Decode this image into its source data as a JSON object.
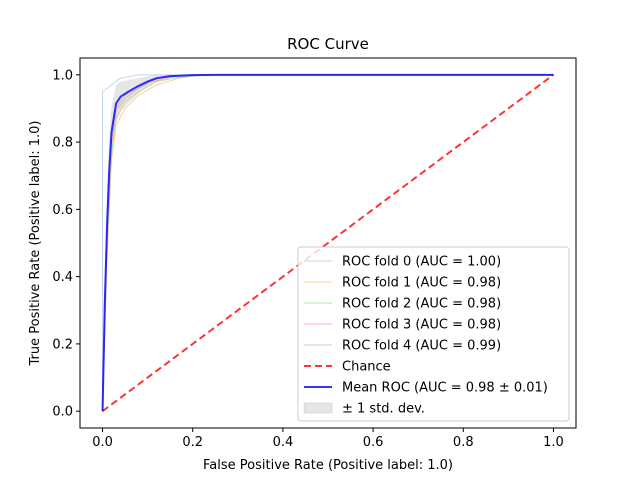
{
  "chart_data": {
    "type": "line",
    "title": "ROC Curve",
    "xlabel": "False Positive Rate (Positive label: 1.0)",
    "ylabel": "True Positive Rate (Positive label: 1.0)",
    "xlim": [
      -0.05,
      1.05
    ],
    "ylim": [
      -0.05,
      1.05
    ],
    "xticks": [
      "0.0",
      "0.2",
      "0.4",
      "0.6",
      "0.8",
      "1.0"
    ],
    "yticks": [
      "0.0",
      "0.2",
      "0.4",
      "0.6",
      "0.8",
      "1.0"
    ],
    "grid": false,
    "legend_position": "lower-right",
    "series": [
      {
        "name": "ROC fold 0 (AUC = 1.00)",
        "color": "#aec7e8",
        "style": "thin",
        "x": [
          0,
          0,
          0.02,
          0.04,
          0.08,
          0.15,
          1.0
        ],
        "y": [
          0,
          0.95,
          0.97,
          0.99,
          1.0,
          1.0,
          1.0
        ]
      },
      {
        "name": "ROC fold 1 (AUC = 0.98)",
        "color": "#ffbb78",
        "style": "thin",
        "x": [
          0,
          0.01,
          0.02,
          0.03,
          0.05,
          0.08,
          0.12,
          0.17,
          0.22,
          1.0
        ],
        "y": [
          0,
          0.45,
          0.75,
          0.85,
          0.9,
          0.94,
          0.97,
          0.99,
          1.0,
          1.0
        ]
      },
      {
        "name": "ROC fold 2 (AUC = 0.98)",
        "color": "#98df8a",
        "style": "thin",
        "x": [
          0,
          0.01,
          0.02,
          0.03,
          0.05,
          0.08,
          0.12,
          0.16,
          0.22,
          1.0
        ],
        "y": [
          0,
          0.5,
          0.77,
          0.87,
          0.92,
          0.95,
          0.98,
          0.99,
          1.0,
          1.0
        ]
      },
      {
        "name": "ROC fold 3 (AUC = 0.98)",
        "color": "#ff9896",
        "style": "thin",
        "x": [
          0,
          0.01,
          0.02,
          0.03,
          0.05,
          0.08,
          0.11,
          0.16,
          0.2,
          1.0
        ],
        "y": [
          0,
          0.55,
          0.8,
          0.89,
          0.93,
          0.96,
          0.98,
          0.995,
          1.0,
          1.0
        ]
      },
      {
        "name": "ROC fold 4 (AUC = 0.99)",
        "color": "#c5b0d5",
        "style": "thin",
        "x": [
          0,
          0.01,
          0.02,
          0.03,
          0.05,
          0.08,
          0.11,
          0.15,
          0.2,
          1.0
        ],
        "y": [
          0,
          0.6,
          0.82,
          0.9,
          0.94,
          0.96,
          0.985,
          0.995,
          1.0,
          1.0
        ]
      },
      {
        "name": "Chance",
        "color": "#ff0000",
        "style": "dashed",
        "x": [
          0,
          1
        ],
        "y": [
          0,
          1
        ]
      },
      {
        "name": "Mean ROC (AUC = 0.98 ± 0.01)",
        "color": "#0000ff",
        "style": "bold",
        "x": [
          0,
          0.005,
          0.01,
          0.015,
          0.02,
          0.03,
          0.04,
          0.06,
          0.08,
          0.1,
          0.12,
          0.15,
          0.2,
          0.25,
          0.3,
          0.5,
          1.0
        ],
        "y": [
          0,
          0.32,
          0.55,
          0.72,
          0.83,
          0.915,
          0.935,
          0.952,
          0.967,
          0.98,
          0.99,
          0.996,
          0.999,
          1.0,
          1.0,
          1.0,
          1.0
        ]
      }
    ],
    "band": {
      "name": "± 1 std. dev.",
      "color": "#808080",
      "x": [
        0,
        0.005,
        0.01,
        0.015,
        0.02,
        0.03,
        0.04,
        0.06,
        0.08,
        0.1,
        0.12,
        0.15,
        0.2,
        0.25,
        0.3,
        0.5,
        1.0
      ],
      "upper": [
        0,
        0.42,
        0.66,
        0.83,
        0.91,
        0.97,
        0.98,
        0.985,
        0.99,
        0.995,
        1.0,
        1.0,
        1.0,
        1.0,
        1.0,
        1.0,
        1.0
      ],
      "lower": [
        0,
        0.22,
        0.44,
        0.61,
        0.75,
        0.86,
        0.89,
        0.92,
        0.945,
        0.965,
        0.98,
        0.99,
        0.998,
        1.0,
        1.0,
        1.0,
        1.0
      ]
    }
  }
}
